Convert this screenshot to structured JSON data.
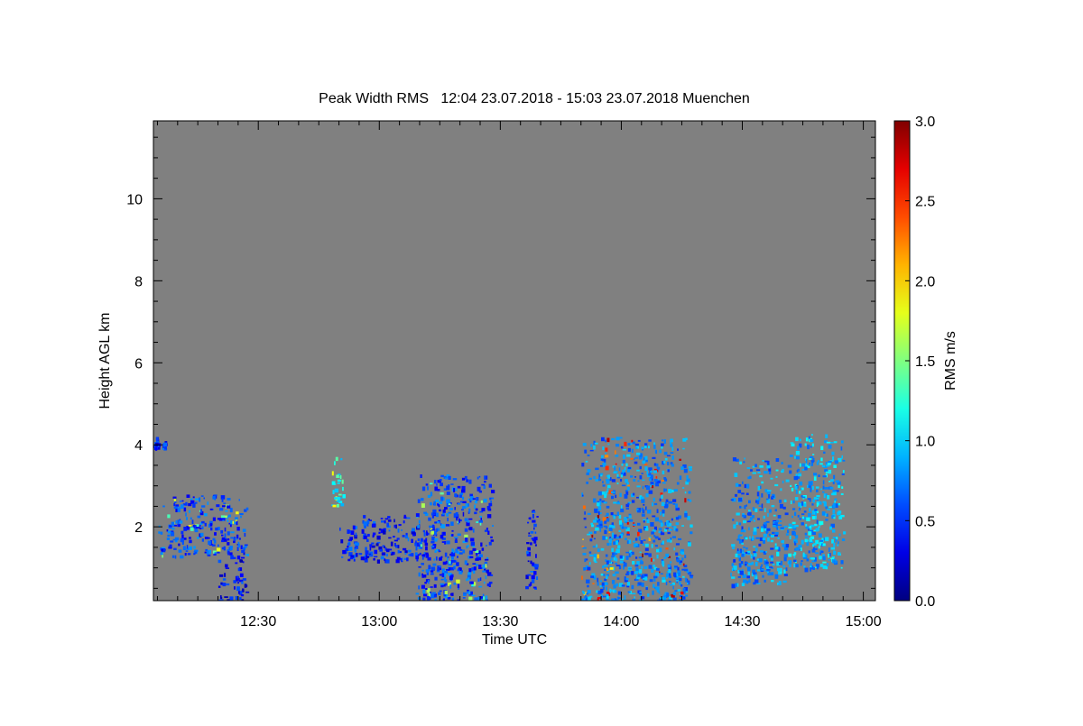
{
  "chart_data": {
    "type": "heatmap",
    "title": "Peak Width RMS   12:04 23.07.2018 - 15:03 23.07.2018 Muenchen",
    "xlabel": "Time UTC",
    "ylabel": "Height AGL km",
    "xlim": [
      "12:04",
      "15:03"
    ],
    "ylim": [
      0.2,
      11.9
    ],
    "x_ticks": [
      "12:30",
      "13:00",
      "13:30",
      "14:00",
      "14:30",
      "15:00"
    ],
    "y_ticks": [
      2,
      4,
      6,
      8,
      10
    ],
    "colorbar": {
      "label": "RMS m/s",
      "range": [
        0.0,
        3.0
      ],
      "ticks": [
        "0.0",
        "0.5",
        "1.0",
        "1.5",
        "2.0",
        "2.5",
        "3.0"
      ],
      "colormap": "jet"
    },
    "background_color": "#808080",
    "grid": false,
    "echoes": [
      {
        "t_start": "12:04",
        "t_end": "12:05",
        "h_bottom": 3.9,
        "h_top": 4.2,
        "rms_typical": 0.5
      },
      {
        "t_start": "12:06",
        "t_end": "12:07",
        "h_bottom": 3.9,
        "h_top": 4.1,
        "rms_typical": 0.5
      },
      {
        "t_start": "12:05",
        "t_end": "12:27",
        "h_bottom": 1.3,
        "h_top": 2.8,
        "rms_typical": 0.6,
        "rms_max": 1.9
      },
      {
        "t_start": "12:20",
        "t_end": "12:27",
        "h_bottom": 0.2,
        "h_top": 1.3,
        "rms_typical": 0.4
      },
      {
        "t_start": "12:48",
        "t_end": "12:51",
        "h_bottom": 2.5,
        "h_top": 3.8,
        "rms_typical": 1.2,
        "rms_max": 2.0
      },
      {
        "t_start": "12:50",
        "t_end": "13:12",
        "h_bottom": 1.2,
        "h_top": 2.3,
        "rms_typical": 0.5
      },
      {
        "t_start": "13:09",
        "t_end": "13:28",
        "h_bottom": 0.2,
        "h_top": 3.3,
        "rms_typical": 0.6,
        "rms_max": 1.8
      },
      {
        "t_start": "13:36",
        "t_end": "13:39",
        "h_bottom": 0.5,
        "h_top": 2.5,
        "rms_typical": 0.5
      },
      {
        "t_start": "13:50",
        "t_end": "14:17",
        "h_bottom": 0.2,
        "h_top": 4.2,
        "rms_typical": 0.8,
        "rms_max": 3.0
      },
      {
        "t_start": "14:27",
        "t_end": "14:41",
        "h_bottom": 0.6,
        "h_top": 3.7,
        "rms_typical": 0.8
      },
      {
        "t_start": "14:41",
        "t_end": "14:55",
        "h_bottom": 1.0,
        "h_top": 4.3,
        "rms_typical": 0.9
      }
    ]
  }
}
